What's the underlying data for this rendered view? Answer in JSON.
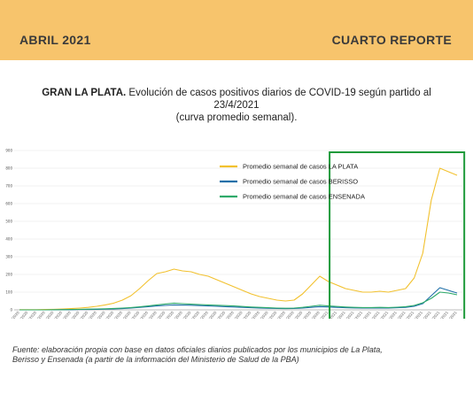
{
  "header": {
    "left": "ABRIL 2021",
    "right": "CUARTO REPORTE"
  },
  "title": {
    "bold": "GRAN LA PLATA.",
    "rest": " Evolución de casos positivos diarios de COVID-19 según partido al 23/4/2021",
    "line2": "(curva promedio semanal)."
  },
  "footer": {
    "line1": "Fuente: elaboración propia con base en datos oficiales diarios publicados por los municipios de La Plata,",
    "line2": "Berisso y Ensenada (a partir de la información del Ministerio de Salud de la PBA)"
  },
  "colors": {
    "banner": "#f7c46c",
    "la_plata": "#f2c12e",
    "berisso": "#1f6fa8",
    "ensenada": "#2eaa6a",
    "highlight_box": "#1e9a3a"
  },
  "chart_data": {
    "type": "line",
    "x_labels": [
      "28/04/2020",
      "05/05/2020",
      "12/05/2020",
      "19/05/2020",
      "26/05/2020",
      "02/06/2020",
      "09/06/2020",
      "16/06/2020",
      "23/06/2020",
      "30/06/2020",
      "07/07/2020",
      "14/07/2020",
      "21/07/2020",
      "28/07/2020",
      "04/08/2020",
      "11/08/2020",
      "18/08/2020",
      "25/08/2020",
      "01/09/2020",
      "08/09/2020",
      "15/09/2020",
      "22/09/2020",
      "29/09/2020",
      "06/10/2020",
      "13/10/2020",
      "20/10/2020",
      "27/10/2020",
      "03/11/2020",
      "10/11/2020",
      "17/11/2020",
      "24/11/2020",
      "01/12/2020",
      "08/12/2020",
      "15/12/2020",
      "22/12/2020",
      "29/12/2020",
      "05/01/2021",
      "12/01/2021",
      "19/01/2021",
      "26/01/2021",
      "02/02/2021",
      "09/02/2021",
      "16/02/2021",
      "23/02/2021",
      "02/03/2021",
      "09/03/2021",
      "16/03/2021",
      "23/03/2021",
      "30/03/2021",
      "06/04/2021",
      "13/04/2021",
      "20/04/2021"
    ],
    "ylim": [
      0,
      900
    ],
    "yticks": [
      0,
      100,
      200,
      300,
      400,
      500,
      600,
      700,
      800,
      900
    ],
    "grid": true,
    "legend_position": "top-right",
    "highlight_range": [
      "06/01/2021",
      "23/04/2021"
    ],
    "series": [
      {
        "name": "Promedio semanal de casos LA PLATA",
        "color": "#f2c12e",
        "values": [
          1,
          1,
          1,
          2,
          3,
          5,
          7,
          10,
          14,
          20,
          28,
          38,
          55,
          80,
          120,
          165,
          205,
          215,
          230,
          220,
          215,
          200,
          190,
          170,
          150,
          130,
          110,
          90,
          75,
          65,
          55,
          50,
          55,
          90,
          140,
          190,
          160,
          140,
          120,
          110,
          100,
          100,
          105,
          100,
          110,
          120,
          180,
          320,
          620,
          800,
          780,
          760
        ]
      },
      {
        "name": "Promedio semanal de casos BERISSO",
        "color": "#1f6fa8",
        "values": [
          0,
          0,
          0,
          0,
          0,
          1,
          1,
          2,
          2,
          3,
          4,
          5,
          7,
          10,
          14,
          18,
          22,
          25,
          28,
          27,
          26,
          24,
          22,
          20,
          18,
          16,
          14,
          12,
          10,
          9,
          8,
          7,
          8,
          10,
          14,
          18,
          16,
          14,
          12,
          11,
          10,
          10,
          11,
          10,
          12,
          14,
          20,
          35,
          80,
          125,
          110,
          95
        ]
      },
      {
        "name": "Promedio semanal de casos ENSENADA",
        "color": "#2eaa6a",
        "values": [
          0,
          0,
          0,
          0,
          1,
          1,
          2,
          3,
          4,
          5,
          6,
          8,
          10,
          13,
          17,
          22,
          28,
          33,
          38,
          35,
          32,
          30,
          28,
          26,
          24,
          22,
          19,
          16,
          14,
          12,
          10,
          9,
          10,
          14,
          20,
          26,
          22,
          19,
          16,
          14,
          13,
          13,
          14,
          13,
          15,
          18,
          25,
          40,
          65,
          100,
          95,
          85
        ]
      }
    ]
  }
}
